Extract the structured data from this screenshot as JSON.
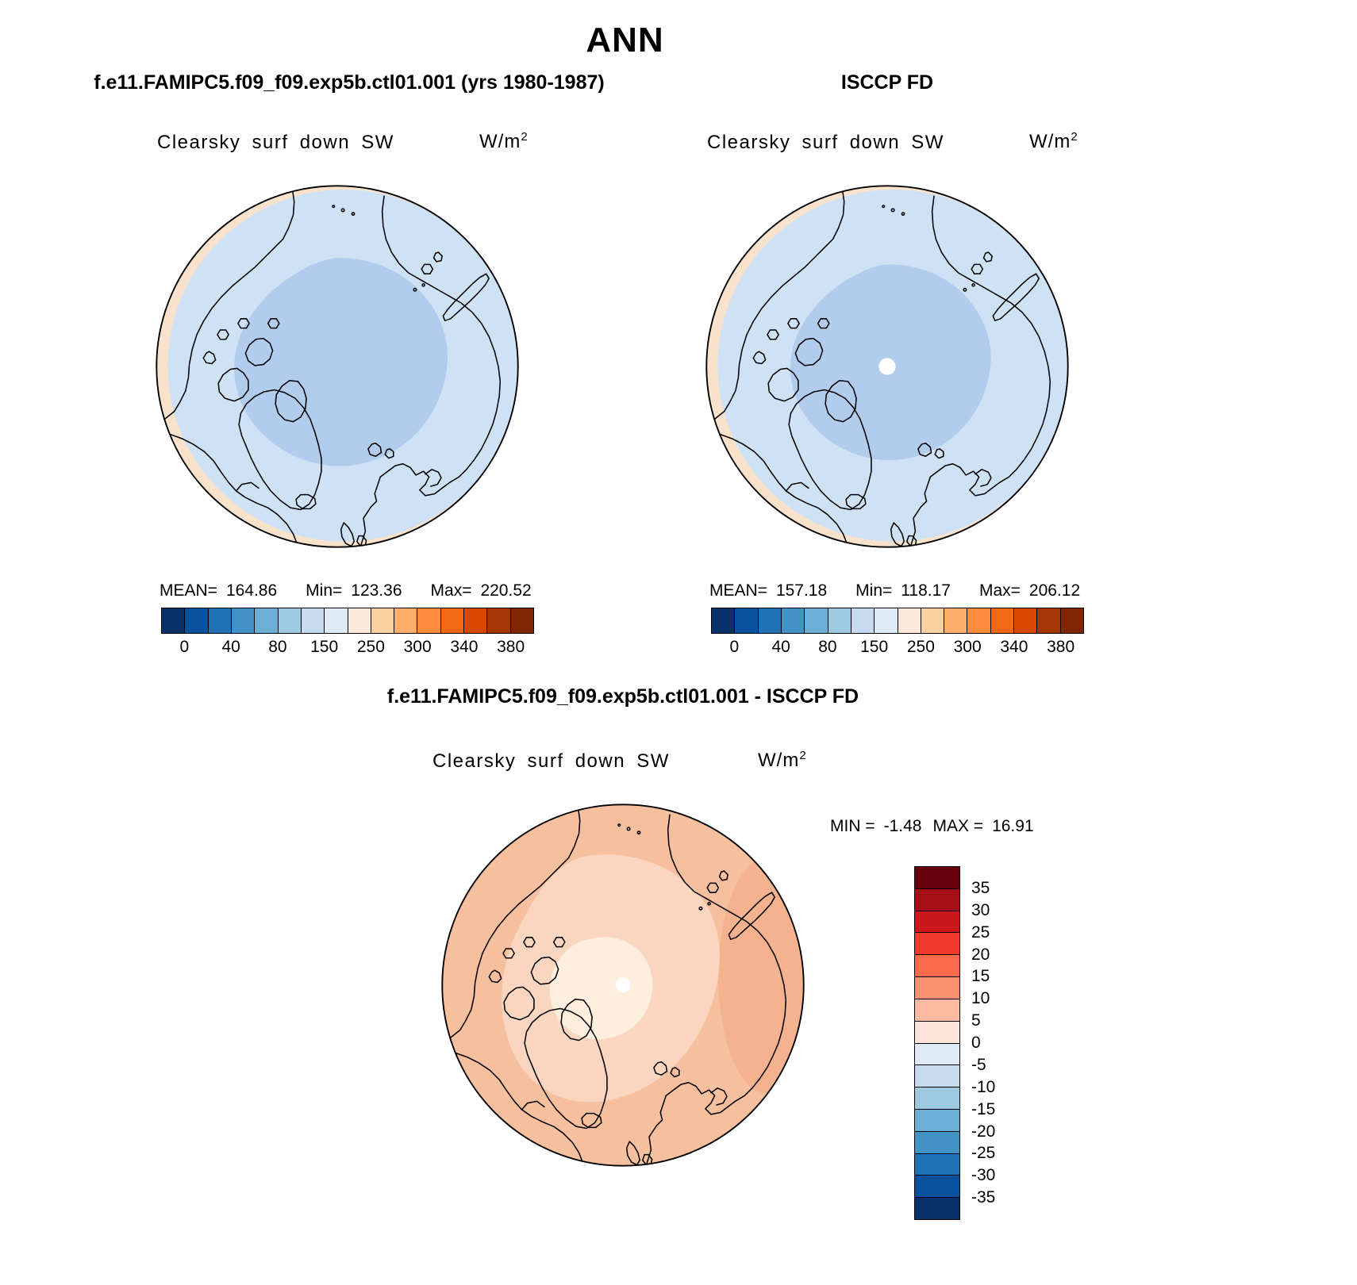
{
  "title": "ANN",
  "panels": {
    "model": {
      "header": "f.e11.FAMIPC5.f09_f09.exp5b.ctl01.001 (yrs 1980-1987)",
      "map_title": "Clearsky surf down SW",
      "units_base": "W/m",
      "units_exponent": "2",
      "stats": {
        "mean_label": "MEAN=",
        "mean_value": "164.86",
        "min_label": "Min=",
        "min_value": "123.36",
        "max_label": "Max=",
        "max_value": "220.52"
      }
    },
    "obs": {
      "header": "ISCCP FD",
      "map_title": "Clearsky surf down SW",
      "units_base": "W/m",
      "units_exponent": "2",
      "stats": {
        "mean_label": "MEAN=",
        "mean_value": "157.18",
        "min_label": "Min=",
        "min_value": "118.17",
        "max_label": "Max=",
        "max_value": "206.12"
      }
    },
    "diff": {
      "header": "f.e11.FAMIPC5.f09_f09.exp5b.ctl01.001 - ISCCP FD",
      "map_title": "Clearsky surf down SW",
      "units_base": "W/m",
      "units_exponent": "2",
      "stats": {
        "min_label": "MIN =",
        "min_value": "-1.48",
        "max_label": "MAX =",
        "max_value": "16.91"
      }
    }
  },
  "colorbar_top": {
    "orientation": "horizontal",
    "colors": [
      "#08306b",
      "#08519c",
      "#2171b5",
      "#4292c6",
      "#6baed6",
      "#9ecae1",
      "#c6dbef",
      "#deebf7",
      "#fee8d9",
      "#fdd0a2",
      "#fdae6b",
      "#fd8d3c",
      "#f16913",
      "#d94801",
      "#a63603",
      "#7f2704"
    ],
    "tick_labels": [
      "0",
      "40",
      "80",
      "150",
      "250",
      "300",
      "340",
      "380"
    ]
  },
  "colorbar_diff": {
    "orientation": "vertical",
    "colors": [
      "#67000d",
      "#a50f15",
      "#cb181d",
      "#ef3b2c",
      "#fb6a4a",
      "#fc9272",
      "#fcbba1",
      "#fee5d9",
      "#deebf7",
      "#c6dbef",
      "#9ecae1",
      "#6baed6",
      "#4292c6",
      "#2171b5",
      "#08519c",
      "#08306b"
    ],
    "tick_labels": [
      "35",
      "30",
      "25",
      "20",
      "15",
      "10",
      "5",
      "0",
      "-5",
      "-10",
      "-15",
      "-20",
      "-25",
      "-30",
      "-35"
    ]
  },
  "chart_data": [
    {
      "type": "heatmap",
      "title": "Clearsky surf down SW",
      "subtitle": "f.e11.FAMIPC5.f09_f09.exp5b.ctl01.001 (yrs 1980-1987)",
      "season": "ANN",
      "units": "W/m2",
      "projection": "north polar stereographic",
      "mean": 164.86,
      "min": 123.36,
      "max": 220.52,
      "colorbar_ticks": [
        0,
        40,
        80,
        150,
        250,
        300,
        340,
        380
      ],
      "legend_position": "bottom",
      "notes": "Arctic map dominated by 80-150 W/m2 light blue band; darker 40-80 band over central Arctic Ocean; pale orange 150-250 band at low-latitude rim"
    },
    {
      "type": "heatmap",
      "title": "Clearsky surf down SW",
      "subtitle": "ISCCP FD",
      "season": "ANN",
      "units": "W/m2",
      "projection": "north polar stereographic",
      "mean": 157.18,
      "min": 118.17,
      "max": 206.12,
      "colorbar_ticks": [
        0,
        40,
        80,
        150,
        250,
        300,
        340,
        380
      ],
      "legend_position": "bottom",
      "notes": "Same field from observations; missing-data hole at pole"
    },
    {
      "type": "heatmap",
      "title": "Clearsky surf down SW",
      "subtitle": "f.e11.FAMIPC5.f09_f09.exp5b.ctl01.001 - ISCCP FD",
      "season": "ANN",
      "units": "W/m2",
      "projection": "north polar stereographic",
      "min": -1.48,
      "max": 16.91,
      "colorbar_ticks": [
        35,
        30,
        25,
        20,
        15,
        10,
        5,
        0,
        -5,
        -10,
        -15,
        -20,
        -25,
        -30,
        -35
      ],
      "legend_position": "right",
      "notes": "Difference map; mostly +5 to +10 W/m2 light orange, near-zero pale region around pole and Canadian archipelago"
    }
  ]
}
